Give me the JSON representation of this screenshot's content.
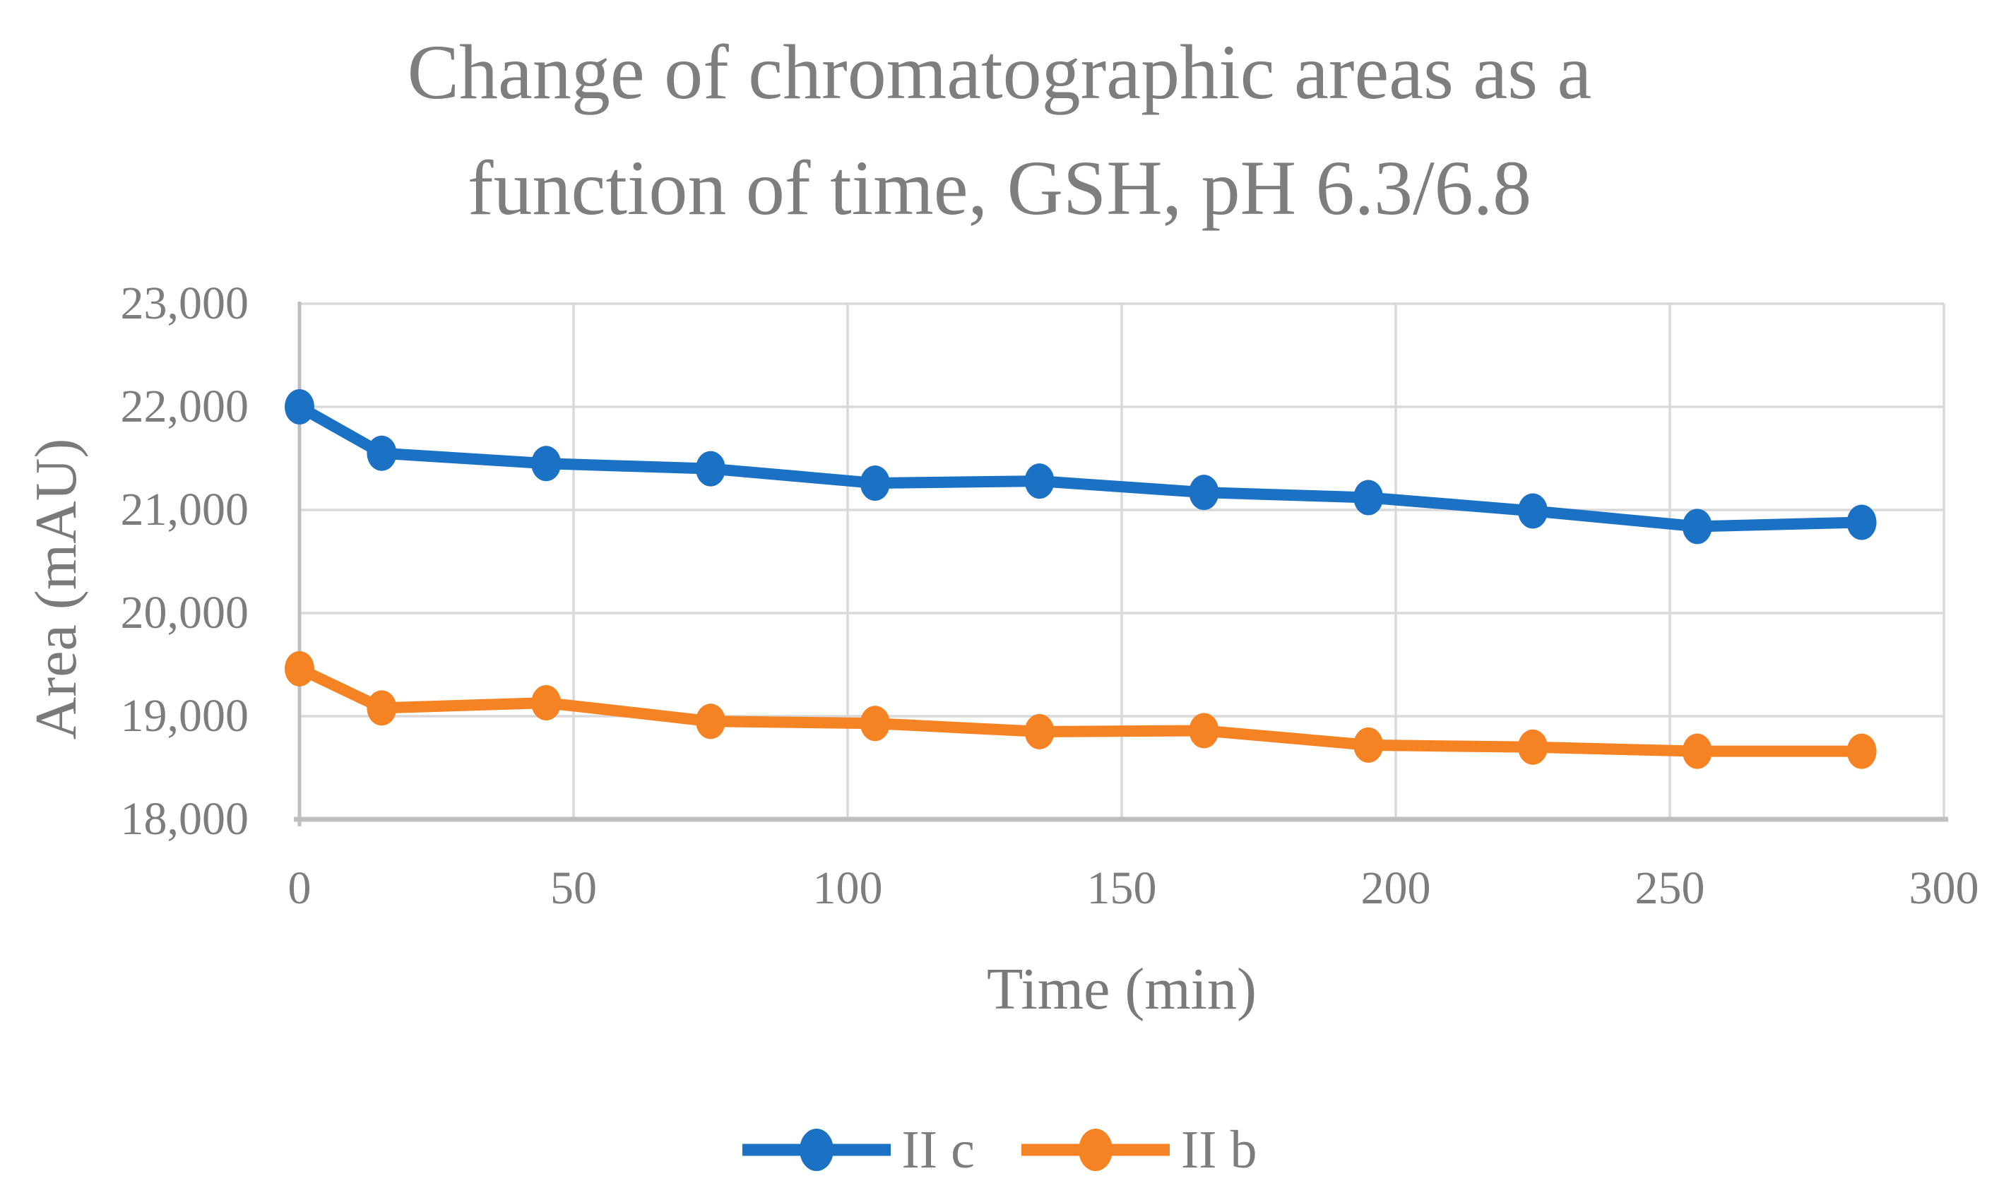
{
  "title_lines": [
    "Change of chromatographic areas as a",
    "function of time, GSH, pH 6.3/6.8"
  ],
  "axes": {
    "x_title": "Time (min)",
    "y_title": "Area (mAU)"
  },
  "colors": {
    "series_blue": "#1B72C4",
    "series_orange": "#F58223",
    "gridline": "#D9D9D9",
    "axis_line": "#BFBFBF",
    "text_gray": "#7D7D7D",
    "background": "#FFFFFF"
  },
  "chart_data": {
    "type": "line",
    "title": "Change of chromatographic areas as a function of time, GSH, pH 6.3/6.8",
    "xlabel": "Time (min)",
    "ylabel": "Area (mAU)",
    "x": [
      0,
      15,
      45,
      75,
      105,
      135,
      165,
      195,
      225,
      255,
      285
    ],
    "series": [
      {
        "name": "II c",
        "color": "#1B72C4",
        "values": [
          22000,
          21550,
          21450,
          21400,
          21260,
          21280,
          21170,
          21120,
          20990,
          20840,
          20880
        ]
      },
      {
        "name": "II b",
        "color": "#F58223",
        "values": [
          19460,
          19080,
          19130,
          18950,
          18930,
          18850,
          18860,
          18720,
          18700,
          18660,
          18660
        ]
      }
    ],
    "xlim": [
      0,
      300
    ],
    "ylim": [
      18000,
      23000
    ],
    "x_ticks": [
      0,
      50,
      100,
      150,
      200,
      250,
      300
    ],
    "x_tick_labels": [
      "0",
      "50",
      "100",
      "150",
      "200",
      "250",
      "300"
    ],
    "y_ticks": [
      18000,
      19000,
      20000,
      21000,
      22000,
      23000
    ],
    "y_tick_labels": [
      "18,000",
      "19,000",
      "20,000",
      "21,000",
      "22,000",
      "23,000"
    ],
    "grid": true,
    "legend_position": "bottom",
    "legend_entries": [
      "II c",
      "II b"
    ]
  }
}
